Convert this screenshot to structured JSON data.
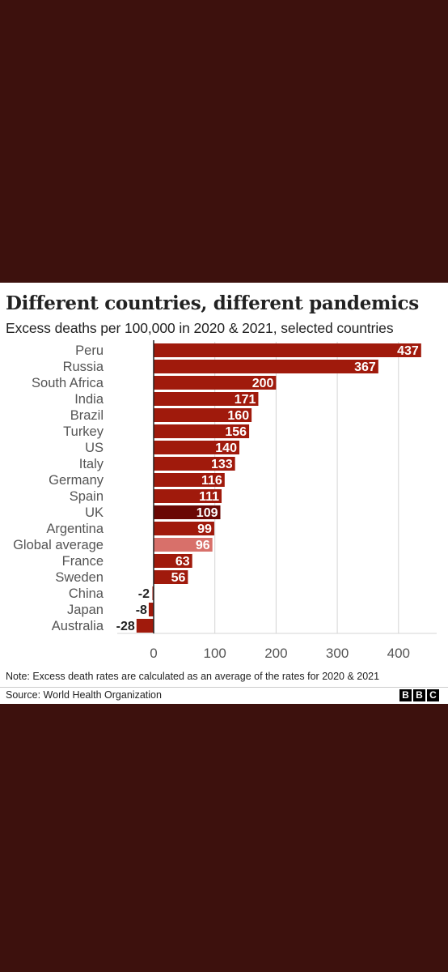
{
  "chart_data": {
    "type": "bar",
    "orientation": "horizontal",
    "title": "Different countries, different pandemics",
    "subtitle": "Excess deaths per 100,000 in 2020 & 2021, selected countries",
    "categories": [
      "Peru",
      "Russia",
      "South Africa",
      "India",
      "Brazil",
      "Turkey",
      "US",
      "Italy",
      "Germany",
      "Spain",
      "UK",
      "Argentina",
      "Global average",
      "France",
      "Sweden",
      "China",
      "Japan",
      "Australia"
    ],
    "values": [
      437,
      367,
      200,
      171,
      160,
      156,
      140,
      133,
      116,
      111,
      109,
      99,
      96,
      63,
      56,
      -2,
      -8,
      -28
    ],
    "data_labels": [
      "437",
      "367",
      "200",
      "171",
      "160",
      "156",
      "140",
      "133",
      "116",
      "111",
      "109",
      "99",
      "96",
      "63",
      "56",
      "-2",
      "-8",
      "-28"
    ],
    "xlim": [
      -30,
      470
    ],
    "xticks": [
      0,
      100,
      200,
      300,
      400
    ],
    "xtick_labels": [
      "0",
      "100",
      "200",
      "300",
      "400"
    ],
    "grid": true,
    "colors": {
      "default": "#a01a0c",
      "UK": "#6a0804",
      "Global average": "#d8706a",
      "grid": "#d4d4d4",
      "axis": "#222222"
    },
    "note": "Note: Excess death rates are calculated as an average of the rates for 2020 & 2021",
    "source": "Source: World Health Organization"
  },
  "brand": {
    "logo_letters": [
      "B",
      "B",
      "C"
    ]
  }
}
